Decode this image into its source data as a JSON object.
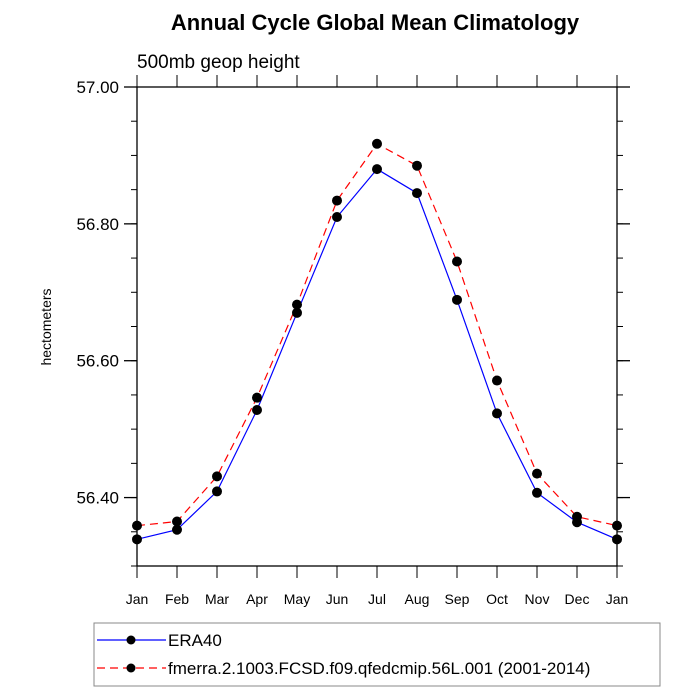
{
  "chart_data": {
    "type": "line",
    "title": "Annual Cycle Global Mean Climatology",
    "subtitle": "500mb geop height",
    "xlabel": "",
    "ylabel": "hectometers",
    "categories": [
      "Jan",
      "Feb",
      "Mar",
      "Apr",
      "May",
      "Jun",
      "Jul",
      "Aug",
      "Sep",
      "Oct",
      "Nov",
      "Dec",
      "Jan"
    ],
    "ylim": [
      56.3,
      57.0
    ],
    "yticks_major": [
      56.4,
      56.6,
      56.8,
      57.0
    ],
    "ytick_labels": [
      "56.40",
      "56.60",
      "56.80",
      "57.00"
    ],
    "yticks_minor_step": 0.05,
    "grid": false,
    "legend_position": "bottom",
    "series": [
      {
        "name": "ERA40",
        "color": "#0000ff",
        "dash": "solid",
        "marker": "filled-circle",
        "values": [
          56.339,
          56.353,
          56.409,
          56.528,
          56.67,
          56.81,
          56.88,
          56.845,
          56.689,
          56.523,
          56.407,
          56.364,
          56.339
        ]
      },
      {
        "name": "fmerra.2.1003.FCSD.f09.qfedcmip.56L.001 (2001-2014)",
        "color": "#ff0000",
        "dash": "dashed",
        "marker": "filled-circle",
        "values": [
          56.359,
          56.365,
          56.431,
          56.546,
          56.682,
          56.834,
          56.917,
          56.885,
          56.745,
          56.571,
          56.435,
          56.372,
          56.359
        ]
      }
    ],
    "marker_color": "#000000"
  }
}
